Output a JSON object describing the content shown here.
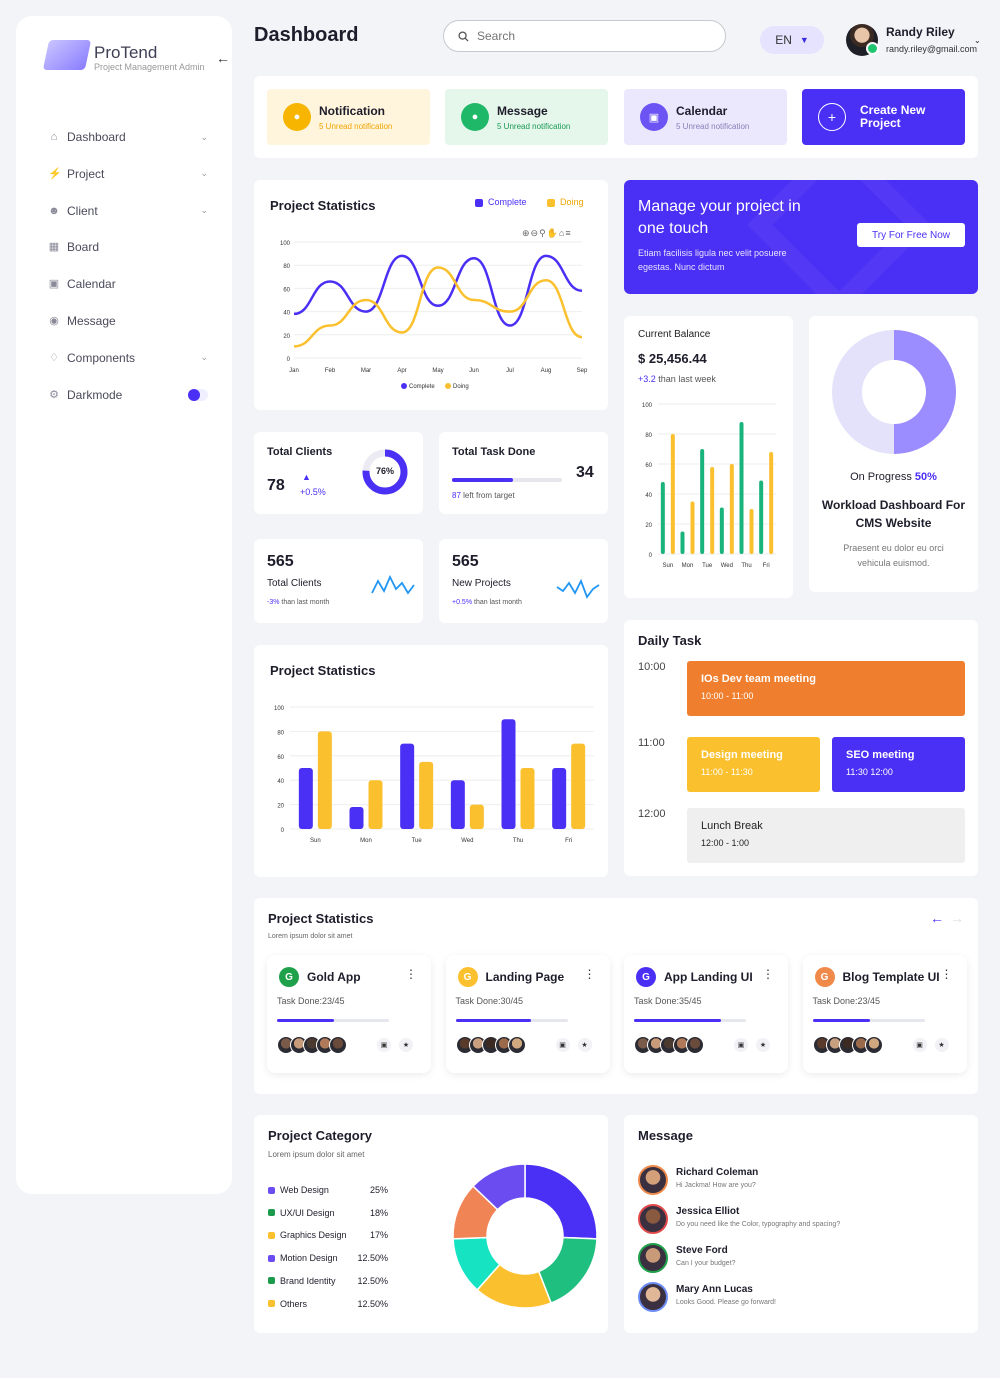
{
  "brand": {
    "title": "ProTend",
    "subtitle": "Project Management Admin"
  },
  "sidebar": {
    "items": [
      {
        "label": "Dashboard",
        "icon": "home-icon",
        "chevron": true
      },
      {
        "label": "Project",
        "icon": "bolt-icon",
        "chevron": true
      },
      {
        "label": "Client",
        "icon": "user-icon",
        "chevron": true
      },
      {
        "label": "Board",
        "icon": "grid-icon",
        "chevron": false
      },
      {
        "label": "Calendar",
        "icon": "calendar-icon",
        "chevron": false
      },
      {
        "label": "Message",
        "icon": "chat-icon",
        "chevron": false
      },
      {
        "label": "Components",
        "icon": "components-icon",
        "chevron": true
      },
      {
        "label": "Darkmode",
        "icon": "gear-icon",
        "chevron": false,
        "toggle": true
      }
    ]
  },
  "header": {
    "title": "Dashboard",
    "search_placeholder": "Search",
    "lang": "EN",
    "user_name": "Randy Riley",
    "user_email": "randy.riley@gmail.com"
  },
  "quick": [
    {
      "title": "Notification",
      "sub": "5 Unread notification",
      "bg": "#fff4dc",
      "accent": "#f7b500",
      "sub_color": "#f0a500",
      "icon": "bell-icon"
    },
    {
      "title": "Message",
      "sub": "5 Unread notification",
      "bg": "#e5f6ea",
      "accent": "#1fb868",
      "sub_color": "#1a9a57",
      "icon": "message-icon"
    },
    {
      "title": "Calendar",
      "sub": "5 Unread notification",
      "bg": "#ebe7fd",
      "accent": "#6c54f4",
      "sub_color": "#8a80b8",
      "icon": "calendar-icon"
    }
  ],
  "create_button": "Create New Project",
  "stats_line": {
    "title": "Project Statistics",
    "legend": [
      "Complete",
      "Doing"
    ],
    "chart_data": {
      "type": "line",
      "categories": [
        "Jan",
        "Feb",
        "Mar",
        "Apr",
        "May",
        "Jun",
        "Jul",
        "Aug",
        "Sep"
      ],
      "ylim": [
        0,
        100
      ],
      "yticks": [
        0,
        20,
        40,
        60,
        80,
        100
      ],
      "series": [
        {
          "name": "Complete",
          "color": "#4a2ff5",
          "values": [
            38,
            66,
            40,
            88,
            45,
            86,
            28,
            88,
            58
          ]
        },
        {
          "name": "Doing",
          "color": "#fbc02d",
          "values": [
            10,
            28,
            50,
            22,
            78,
            50,
            40,
            67,
            18
          ]
        }
      ]
    }
  },
  "promo": {
    "title": "Manage your project in one touch",
    "text": "Etiam facilisis ligula nec velit posuere egestas. Nunc dictum",
    "button": "Try For Free Now"
  },
  "balance": {
    "label": "Current Balance",
    "amount": "$ 25,456.44",
    "delta": "+3.2",
    "delta_text": "than last week",
    "chart_data": {
      "type": "bar",
      "categories": [
        "Sun",
        "Mon",
        "Tue",
        "Wed",
        "Thu",
        "Fri"
      ],
      "ylim": [
        0,
        100
      ],
      "yticks": [
        0,
        20,
        40,
        60,
        80,
        100
      ],
      "series": [
        {
          "name": "",
          "color": "#18b47b",
          "values": [
            48,
            15,
            70,
            31,
            88,
            49
          ]
        },
        {
          "name": "",
          "color": "#fbc02d",
          "values": [
            80,
            35,
            58,
            60,
            30,
            68
          ]
        }
      ]
    }
  },
  "progress": {
    "label": "On Progress",
    "value": "50%",
    "title": "Workload Dashboard For CMS Website",
    "text": "Praesent eu dolor eu orci vehicula euismod.",
    "chart_data": {
      "type": "pie",
      "categories": [
        "Done",
        "Remaining"
      ],
      "values": [
        50,
        50
      ],
      "colors": [
        "#9b8cff",
        "#e4e2fa"
      ]
    }
  },
  "total_clients": {
    "title": "Total Clients",
    "value": "78",
    "delta": "+0.5%",
    "ring": "76%",
    "ring_value": 76
  },
  "total_task": {
    "title": "Total Task Done",
    "value": "34",
    "sub_num": "87",
    "sub_text": "left from target",
    "progress": 0.55
  },
  "mini_stats": [
    {
      "value": "565",
      "label": "Total Clients",
      "delta": "-3%",
      "delta_text": "than last month",
      "delta_color": "#4a2ff5"
    },
    {
      "value": "565",
      "label": "New Projects",
      "delta": "+0.5%",
      "delta_text": "than last month",
      "delta_color": "#4a2ff5"
    }
  ],
  "stats_bar": {
    "title": "Project Statistics",
    "chart_data": {
      "type": "bar",
      "categories": [
        "Sun",
        "Mon",
        "Tue",
        "Wed",
        "Thu",
        "Fri"
      ],
      "ylim": [
        0,
        100
      ],
      "yticks": [
        0,
        20,
        40,
        60,
        80,
        100
      ],
      "series": [
        {
          "name": "",
          "color": "#4a2ff5",
          "values": [
            50,
            18,
            70,
            40,
            90,
            50
          ]
        },
        {
          "name": "",
          "color": "#fbc02d",
          "values": [
            80,
            40,
            55,
            20,
            50,
            70
          ]
        }
      ]
    }
  },
  "daily": {
    "title": "Daily Task",
    "times": [
      "10:00",
      "11:00",
      "12:00"
    ],
    "events": [
      {
        "title": "IOs Dev team meeting",
        "time": "10:00 - 11:00",
        "bg": "#ef7f2e",
        "color": "#ffffff"
      },
      {
        "title": "Design meeting",
        "time": "11:00 - 11:30",
        "bg": "#fbc02d",
        "color": "#ffffff"
      },
      {
        "title": "SEO meeting",
        "time": "11:30 12:00",
        "bg": "#4a2ff5",
        "color": "#ffffff"
      },
      {
        "title": "Lunch Break",
        "time": "12:00 - 1:00",
        "bg": "#efefef",
        "color": "#222222"
      }
    ]
  },
  "projects": {
    "title": "Project Statistics",
    "subtitle": "Lorem ipsum dolor sit amet",
    "cards": [
      {
        "title": "Gold App",
        "done": "Task Done:23/45",
        "progress": 0.51,
        "color": "#1fa04a",
        "letter": "G"
      },
      {
        "title": "Landing Page",
        "done": "Task Done:30/45",
        "progress": 0.67,
        "color": "#fbc02d",
        "letter": "G"
      },
      {
        "title": "App Landing UI",
        "done": "Task Done:35/45",
        "progress": 0.78,
        "color": "#4a2ff5",
        "letter": "G"
      },
      {
        "title": "Blog Template UI",
        "done": "Task Done:23/45",
        "progress": 0.51,
        "color": "#f08a4b",
        "letter": "G"
      }
    ]
  },
  "category": {
    "title": "Project Category",
    "subtitle": "Lorem ipsum dolor sit amet",
    "chart_data": {
      "type": "pie",
      "categories": [
        "Web Design",
        "UX/UI Design",
        "Graphics Design",
        "Motion Design",
        "Brand Identity",
        "Others"
      ],
      "labels": [
        "25%",
        "18%",
        "17%",
        "12.50%",
        "12.50%",
        "12.50%"
      ],
      "values": [
        25,
        18,
        17,
        12.5,
        12.5,
        12.5
      ],
      "colors": [
        "#4a2ff5",
        "#1fbf7f",
        "#fbc02d",
        "#16e3c2",
        "#f08455",
        "#6a4cf0"
      ],
      "legend_colors": [
        "#6a4cf0",
        "#1a9a4a",
        "#fbc02d",
        "#6a4cf0",
        "#1a9a4a",
        "#fbc02d"
      ]
    }
  },
  "messages": {
    "title": "Message",
    "items": [
      {
        "name": "Richard Coleman",
        "text": "Hi Jackma! How are you?",
        "ring": "#f08a4b"
      },
      {
        "name": "Jessica Elliot",
        "text": "Do you need like the Color, typography and spacing?",
        "ring": "#e24a4a"
      },
      {
        "name": "Steve Ford",
        "text": "Can I your budget?",
        "ring": "#1fa04a"
      },
      {
        "name": "Mary Ann Lucas",
        "text": "Looks Good. Please go forward!",
        "ring": "#6c8cf4"
      }
    ]
  }
}
